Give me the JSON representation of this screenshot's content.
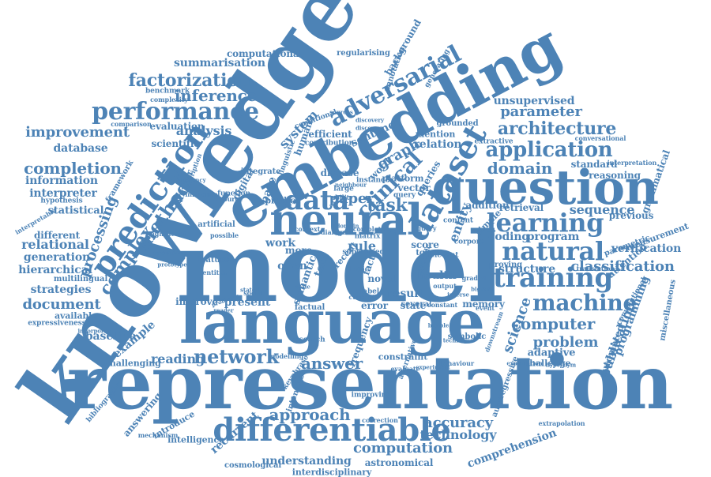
{
  "colors": {
    "word": "#4d83b6",
    "background": "#ffffff"
  },
  "words": [
    "representation",
    "model",
    "knowledge",
    "language",
    "embedding",
    "question",
    "neural",
    "dataset",
    "differentiable",
    "prediction",
    "training",
    "learning",
    "natural",
    "machine",
    "network",
    "performance",
    "application",
    "architecture",
    "method",
    "adversarial",
    "data",
    "complex",
    "processing",
    "approach",
    "computation",
    "factorization",
    "inference",
    "domain",
    "improvement",
    "completion",
    "document",
    "strategies",
    "relational",
    "generation",
    "hierarchical",
    "information",
    "interpreter",
    "database",
    "analysis",
    "parameter",
    "unsupervised",
    "classification",
    "sequence",
    "verification",
    "publication",
    "programming",
    "computer",
    "problem",
    "science",
    "answer",
    "reading",
    "accuracy",
    "technology",
    "comprehension",
    "understanding",
    "astronomical",
    "interdisciplinary",
    "cosmological",
    "intelligence",
    "introduce",
    "answering",
    "bibliography",
    "baseline",
    "example",
    "challenging",
    "available",
    "expressiveness",
    "multilingual",
    "statistical",
    "hypothesis",
    "interpretable",
    "different",
    "summarisation",
    "computational",
    "regularising",
    "benchmark",
    "complexity",
    "comparison",
    "evaluation",
    "scientific",
    "clinical",
    "graph",
    "task",
    "paper",
    "text",
    "semantic",
    "entity",
    "recurrent",
    "coding",
    "program",
    "retrieval",
    "reasoning",
    "standard",
    "interpretation",
    "conversational",
    "grammatical",
    "previous",
    "measurement",
    "attention",
    "parametric",
    "convolutional",
    "translation",
    "structure",
    "adaptive",
    "challenge",
    "automated",
    "miscellaneous",
    "proving",
    "extrapolation",
    "autoregressive",
    "downstream",
    "symbolic",
    "memory",
    "state",
    "error",
    "result",
    "present",
    "improve",
    "health",
    "fact",
    "work",
    "open",
    "rule",
    "more",
    "base",
    "number",
    "digital",
    "predict",
    "function",
    "artificial",
    "possible",
    "significant",
    "social",
    "correction",
    "improving",
    "intensive",
    "system",
    "efficient",
    "human",
    "sentence",
    "relation",
    "mention",
    "grounded",
    "extractive",
    "annotation",
    "background",
    "generating",
    "framework",
    "research",
    "frequency",
    "explanation",
    "hypernym",
    "contribution",
    "behaviour",
    "constant",
    "several",
    "current",
    "label",
    "novel",
    "logic",
    "instance",
    "integrate",
    "description",
    "influence",
    "resource",
    "disease",
    "platform",
    "queries",
    "addition",
    "simple",
    "token",
    "score",
    "recent",
    "specific",
    "relevant",
    "output",
    "corpora",
    "content",
    "word",
    "vector",
    "large",
    "query",
    "query",
    "event",
    "alternative",
    "evaluate",
    "constraint",
    "factual",
    "modelling",
    "keyphrase",
    "mechanism",
    "operation",
    "prototype",
    "feature",
    "entities",
    "problems",
    "reader",
    "ability",
    "neighbour",
    "stated",
    "incorporate",
    "technique",
    "experiment",
    "efficiency",
    "linguistic",
    "conditional",
    "sources",
    "discovery",
    "discovery",
    "matrix",
    "supervised",
    "complete",
    "dialogue",
    "context",
    "domain",
    "bubble",
    "bigram",
    "inverse",
    "graded",
    "scale"
  ]
}
